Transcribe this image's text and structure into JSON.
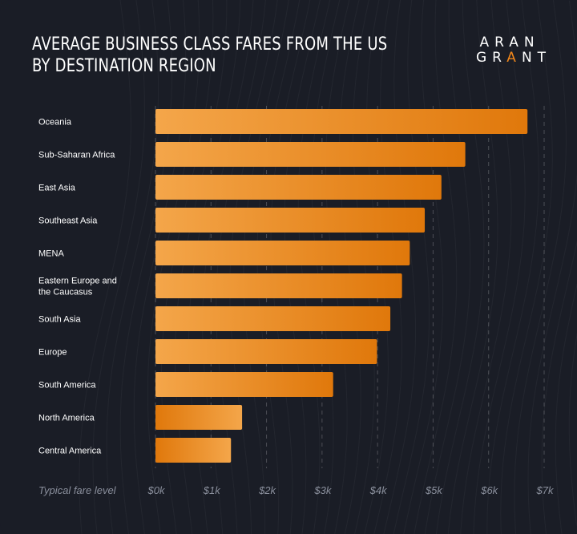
{
  "header": {
    "title_line1": "AVERAGE BUSINESS CLASS FARES FROM THE US",
    "title_line2": "BY DESTINATION REGION",
    "logo_line1": "ARAN",
    "logo_line2_a": "GR",
    "logo_line2_accent": "A",
    "logo_line2_b": "NT"
  },
  "colors": {
    "background": "#1a1d26",
    "bar_start": "#f4a64a",
    "bar_end": "#e0780b",
    "text": "#ffffff",
    "axis_text": "#8a8f9c",
    "accent": "#f0861a"
  },
  "chart_data": {
    "type": "bar",
    "orientation": "horizontal",
    "categories": [
      "Oceania",
      "Sub-Saharan Africa",
      "East Asia",
      "Southeast Asia",
      "MENA",
      "Eastern Europe and the Caucasus",
      "South Asia",
      "Europe",
      "South America",
      "North America",
      "Central America"
    ],
    "values": [
      6700,
      5580,
      5150,
      4850,
      4580,
      4440,
      4230,
      3990,
      3200,
      1560,
      1360
    ],
    "xlabel": "Typical fare level",
    "xlim": [
      0,
      7000
    ],
    "xticks": [
      "$0k",
      "$1k",
      "$2k",
      "$3k",
      "$4k",
      "$5k",
      "$6k",
      "$7k"
    ],
    "grid": true,
    "grid_style": "dashed vertical"
  }
}
